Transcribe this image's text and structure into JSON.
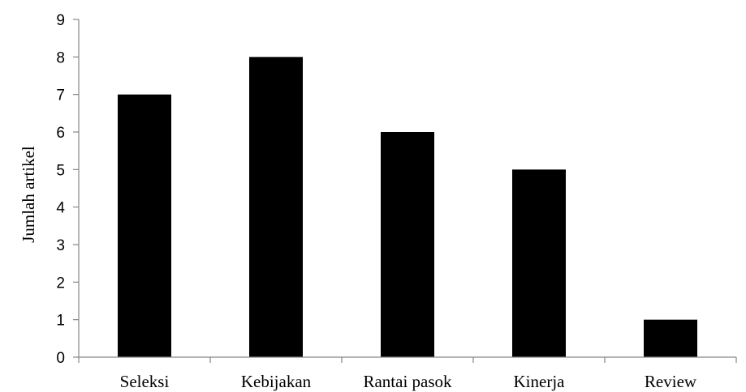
{
  "chart_data": {
    "type": "bar",
    "title": "",
    "xlabel": "",
    "ylabel": "Jumlah artikel",
    "categories": [
      "Seleksi",
      "Kebijakan",
      "Rantai pasok",
      "Kinerja",
      "Review"
    ],
    "values": [
      7,
      8,
      6,
      5,
      1
    ],
    "ylim": [
      0,
      9
    ],
    "yticks": [
      0,
      1,
      2,
      3,
      4,
      5,
      6,
      7,
      8,
      9
    ],
    "grid": false,
    "legend": "none",
    "bar_color": "#000000",
    "axis_color": "#868686"
  }
}
